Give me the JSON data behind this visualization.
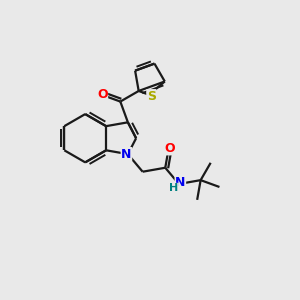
{
  "background_color": "#e9e9e9",
  "bond_color": "#1a1a1a",
  "atom_colors": {
    "O": "#ff0000",
    "N": "#0000ee",
    "S": "#aaaa00",
    "H": "#008080"
  },
  "figsize": [
    3.0,
    3.0
  ],
  "dpi": 100,
  "lw": 1.6,
  "inner_lw": 1.4
}
